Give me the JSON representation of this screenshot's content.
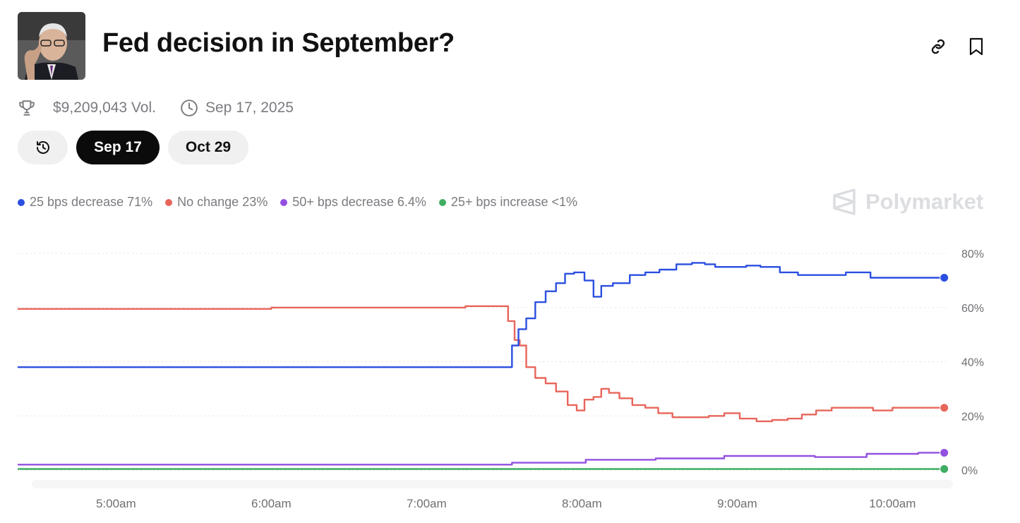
{
  "header": {
    "title": "Fed decision in September?"
  },
  "meta": {
    "volume": "$9,209,043 Vol.",
    "date": "Sep 17, 2025"
  },
  "tabs": [
    {
      "label": "Sep 17",
      "selected": true
    },
    {
      "label": "Oct 29",
      "selected": false
    }
  ],
  "watermark": "Polymarket",
  "icons": {
    "link": "link-icon",
    "bookmark": "bookmark-icon",
    "trophy": "trophy-icon",
    "clock": "clock-icon",
    "history": "history-icon"
  },
  "chart_data": {
    "type": "line",
    "x_ticks": [
      "5:00am",
      "6:00am",
      "7:00am",
      "8:00am",
      "9:00am",
      "10:00am"
    ],
    "y_ticks": [
      "80%",
      "60%",
      "40%",
      "20%",
      "0%"
    ],
    "ylim": [
      0,
      80
    ],
    "xlim": [
      "4:22am",
      "10:22am"
    ],
    "grid": true,
    "legend_position": "top-left",
    "series": [
      {
        "name": "25 bps decrease",
        "legend": "25 bps decrease 71%",
        "color": "#2b4fe0",
        "points": [
          [
            "4:22am",
            38
          ],
          [
            "7:32am",
            38
          ],
          [
            "7:34am",
            46
          ],
          [
            "7:37am",
            52
          ],
          [
            "7:40am",
            56
          ],
          [
            "7:44am",
            62
          ],
          [
            "7:48am",
            66
          ],
          [
            "7:52am",
            69
          ],
          [
            "7:55am",
            72.5
          ],
          [
            "7:59am",
            73
          ],
          [
            "8:03am",
            70
          ],
          [
            "8:06am",
            64
          ],
          [
            "8:09am",
            68
          ],
          [
            "8:15am",
            69
          ],
          [
            "8:22am",
            72
          ],
          [
            "8:27am",
            73
          ],
          [
            "8:33am",
            74
          ],
          [
            "8:40am",
            76
          ],
          [
            "8:45am",
            76.5
          ],
          [
            "8:50am",
            76
          ],
          [
            "8:53am",
            75
          ],
          [
            "9:02am",
            75
          ],
          [
            "9:05am",
            75.5
          ],
          [
            "9:13am",
            75
          ],
          [
            "9:20am",
            73
          ],
          [
            "9:27am",
            72
          ],
          [
            "9:40am",
            72
          ],
          [
            "9:44am",
            73
          ],
          [
            "9:50am",
            73
          ],
          [
            "9:53am",
            71
          ],
          [
            "10:00am",
            71
          ],
          [
            "10:20am",
            71
          ]
        ]
      },
      {
        "name": "No change",
        "legend": "No change 23%",
        "color": "#e8655a",
        "points": [
          [
            "4:22am",
            59.5
          ],
          [
            "5:00am",
            59.5
          ],
          [
            "7:00am",
            60
          ],
          [
            "7:30am",
            60.5
          ],
          [
            "7:33am",
            55
          ],
          [
            "7:35am",
            48
          ],
          [
            "7:37am",
            46
          ],
          [
            "7:40am",
            38
          ],
          [
            "7:44am",
            34
          ],
          [
            "7:48am",
            32
          ],
          [
            "7:52am",
            29
          ],
          [
            "7:57am",
            24
          ],
          [
            "7:59am",
            22
          ],
          [
            "8:03am",
            26
          ],
          [
            "8:06am",
            27
          ],
          [
            "8:09am",
            30
          ],
          [
            "8:12am",
            28.5
          ],
          [
            "8:17am",
            26.5
          ],
          [
            "8:22am",
            24
          ],
          [
            "8:27am",
            23
          ],
          [
            "8:32am",
            21
          ],
          [
            "8:38am",
            19.5
          ],
          [
            "8:45am",
            19.5
          ],
          [
            "8:53am",
            20
          ],
          [
            "8:57am",
            21
          ],
          [
            "9:05am",
            19
          ],
          [
            "9:10am",
            18
          ],
          [
            "9:17am",
            18.5
          ],
          [
            "9:22am",
            19
          ],
          [
            "9:28am",
            20.5
          ],
          [
            "9:33am",
            22
          ],
          [
            "9:40am",
            23
          ],
          [
            "9:50am",
            23
          ],
          [
            "9:55am",
            22
          ],
          [
            "10:05am",
            23
          ],
          [
            "10:20am",
            23
          ]
        ]
      },
      {
        "name": "50+ bps decrease",
        "legend": "50+ bps decrease 6.4%",
        "color": "#9350e0",
        "points": [
          [
            "4:22am",
            2
          ],
          [
            "7:30am",
            2
          ],
          [
            "7:36am",
            2.7
          ],
          [
            "7:58am",
            2.7
          ],
          [
            "8:05am",
            3.8
          ],
          [
            "8:22am",
            3.8
          ],
          [
            "8:35am",
            4.3
          ],
          [
            "8:50am",
            4.3
          ],
          [
            "9:00am",
            5.2
          ],
          [
            "9:20am",
            5.2
          ],
          [
            "9:40am",
            4.8
          ],
          [
            "10:00am",
            6
          ],
          [
            "10:20am",
            6.4
          ]
        ]
      },
      {
        "name": "25+ bps increase",
        "legend": "25+ bps increase <1%",
        "color": "#3fae62",
        "points": [
          [
            "4:22am",
            0.4
          ],
          [
            "10:20am",
            0.4
          ]
        ]
      }
    ]
  }
}
